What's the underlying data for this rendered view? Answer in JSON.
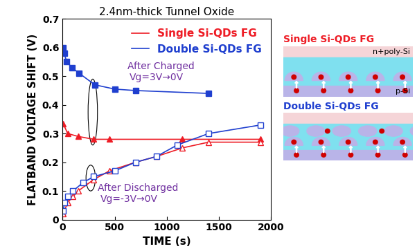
{
  "chart_data": {
    "type": "line",
    "title": "2.4nm-thick Tunnel Oxide",
    "x_label": "TIME (s)",
    "y_label": "FLATBAND VOLTAGE SHIFT (V)",
    "xlim": [
      0,
      2000
    ],
    "xticks": [
      0,
      500,
      1000,
      1500,
      2000
    ],
    "ylim": [
      0,
      0.7
    ],
    "yticks": [
      0,
      0.1,
      0.2,
      0.3,
      0.4,
      0.5,
      0.6,
      0.7
    ],
    "grid": false,
    "legend": "upper right",
    "annotations": [
      "After Charged",
      "Vg=3V→0V",
      "After Discharged",
      "Vg=-3V→0V"
    ],
    "series": [
      {
        "name": "Single Si-QDs FG",
        "color": "#ee1c25",
        "marker": "triangle",
        "x": [
          5,
          50,
          150,
          300,
          450,
          1150,
          1900
        ],
        "values": [
          0.335,
          0.3,
          0.29,
          0.28,
          0.28,
          0.28,
          0.28
        ]
      },
      {
        "name": "Double Si-QDs FG",
        "color": "#1f3fcf",
        "marker": "square",
        "x": [
          5,
          15,
          40,
          90,
          160,
          310,
          500,
          700,
          1400
        ],
        "values": [
          0.6,
          0.58,
          0.55,
          0.53,
          0.51,
          0.47,
          0.455,
          0.45,
          0.44
        ]
      },
      {
        "name": "Single Si-QDs FG",
        "color": "#ee1c25",
        "marker": "triangle_open",
        "x": [
          5,
          50,
          100,
          150,
          300,
          450,
          700,
          900,
          1150,
          1400,
          1900
        ],
        "values": [
          0.02,
          0.06,
          0.08,
          0.1,
          0.14,
          0.17,
          0.2,
          0.22,
          0.25,
          0.27,
          0.27
        ]
      },
      {
        "name": "Double Si-QDs FG",
        "color": "#1f3fcf",
        "marker": "square_open",
        "x": [
          5,
          20,
          50,
          100,
          200,
          300,
          500,
          700,
          900,
          1100,
          1400,
          1900
        ],
        "values": [
          0.03,
          0.06,
          0.08,
          0.1,
          0.13,
          0.15,
          0.17,
          0.2,
          0.22,
          0.26,
          0.3,
          0.33
        ]
      }
    ]
  },
  "diagram": {
    "panels": [
      {
        "title": "Single Si-QDs FG",
        "color": "#ee1c25",
        "dot_layers": 1,
        "labels": [
          "n+poly-Si",
          "p-Si"
        ]
      },
      {
        "title": "Double Si-QDs FG",
        "color": "#1f3fcf",
        "dot_layers": 2,
        "labels": []
      }
    ]
  }
}
